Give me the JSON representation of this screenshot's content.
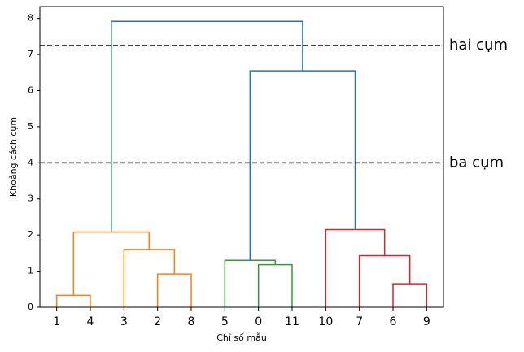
{
  "chart_data": {
    "type": "dendrogram",
    "ylabel": "Khoảng cách cụm",
    "xlabel": "Chỉ số mẫu",
    "xlim": [
      0,
      120
    ],
    "ylim": [
      0,
      8.33
    ],
    "yticks": [
      0,
      1,
      2,
      3,
      4,
      5,
      6,
      7,
      8
    ],
    "xticks": [
      {
        "value": 5,
        "label": "1"
      },
      {
        "value": 15,
        "label": "4"
      },
      {
        "value": 25,
        "label": "3"
      },
      {
        "value": 35,
        "label": "2"
      },
      {
        "value": 45,
        "label": "8"
      },
      {
        "value": 55,
        "label": "5"
      },
      {
        "value": 65,
        "label": "0"
      },
      {
        "value": 75,
        "label": "11"
      },
      {
        "value": 85,
        "label": "10"
      },
      {
        "value": 95,
        "label": "7"
      },
      {
        "value": 105,
        "label": "6"
      },
      {
        "value": 115,
        "label": "9"
      }
    ],
    "links": [
      {
        "x": [
          5,
          5,
          15,
          15
        ],
        "y": [
          0,
          0.33,
          0.33,
          0
        ],
        "color": "#ff7f0e"
      },
      {
        "x": [
          35,
          35,
          45,
          45
        ],
        "y": [
          0,
          0.92,
          0.92,
          0
        ],
        "color": "#ff7f0e"
      },
      {
        "x": [
          25,
          25,
          40,
          40
        ],
        "y": [
          0,
          1.6,
          1.6,
          0.92
        ],
        "color": "#ff7f0e"
      },
      {
        "x": [
          10,
          10,
          32.5,
          32.5
        ],
        "y": [
          0.33,
          2.08,
          2.08,
          1.6
        ],
        "color": "#ff7f0e"
      },
      {
        "x": [
          65,
          65,
          75,
          75
        ],
        "y": [
          0,
          1.18,
          1.18,
          0
        ],
        "color": "#2ca02c"
      },
      {
        "x": [
          55,
          55,
          70,
          70
        ],
        "y": [
          0,
          1.3,
          1.3,
          1.18
        ],
        "color": "#2ca02c"
      },
      {
        "x": [
          105,
          105,
          115,
          115
        ],
        "y": [
          0,
          0.65,
          0.65,
          0
        ],
        "color": "#d62728"
      },
      {
        "x": [
          95,
          95,
          110,
          110
        ],
        "y": [
          0,
          1.43,
          1.43,
          0.65
        ],
        "color": "#d62728"
      },
      {
        "x": [
          85,
          85,
          102.5,
          102.5
        ],
        "y": [
          0,
          2.15,
          2.15,
          1.43
        ],
        "color": "#d62728"
      },
      {
        "x": [
          62.5,
          62.5,
          93.75,
          93.75
        ],
        "y": [
          1.3,
          6.55,
          6.55,
          2.15
        ],
        "color": "#1f77b4"
      },
      {
        "x": [
          21.25,
          21.25,
          78.125,
          78.125
        ],
        "y": [
          2.08,
          7.92,
          7.92,
          6.55
        ],
        "color": "#1f77b4"
      }
    ],
    "hlines": [
      {
        "y": 7.25,
        "label": "hai cụm"
      },
      {
        "y": 4,
        "label": "ba cụm"
      }
    ]
  }
}
